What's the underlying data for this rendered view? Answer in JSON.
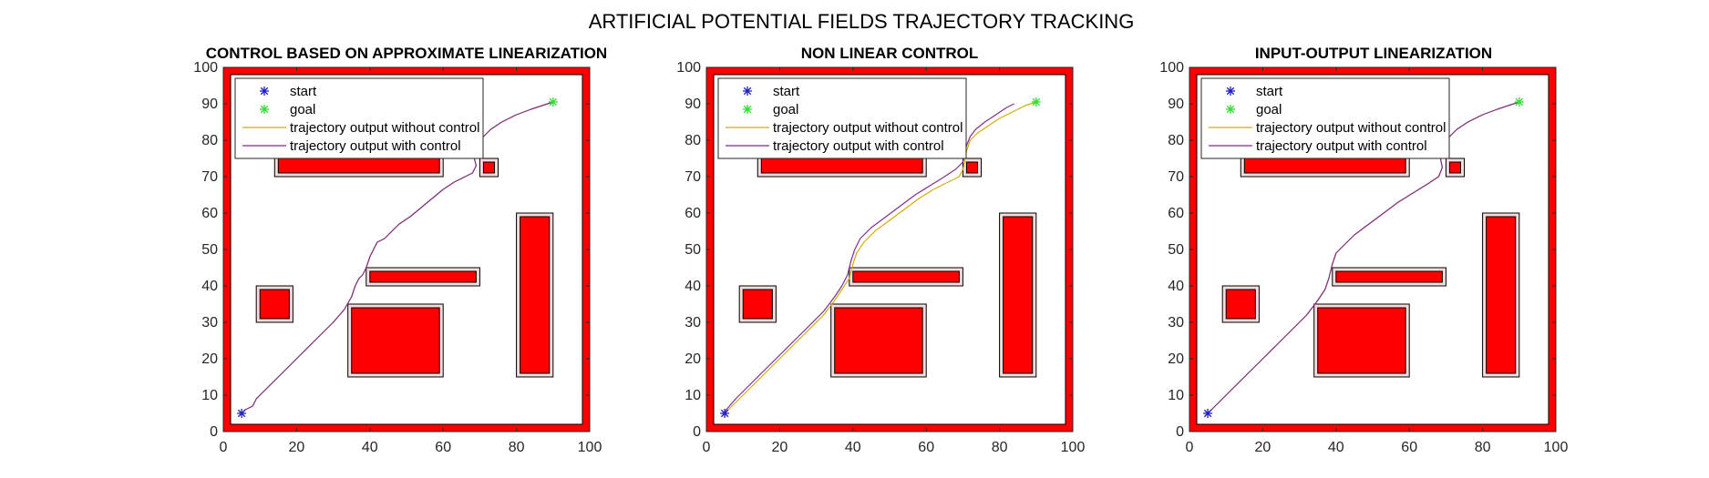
{
  "figure": {
    "title": "ARTIFICIAL POTENTIAL FIELDS TRAJECTORY TRACKING"
  },
  "colors": {
    "obstacle_fill": "#ff0000",
    "obstacle_edge": "#000000",
    "margin_fill": "#f2dcdc",
    "start_marker": "#1f1fbf",
    "goal_marker": "#33dd33",
    "trajectory_without_control": "#d4ac0d",
    "trajectory_with_control": "#7e2f8e"
  },
  "chart_data": [
    {
      "type": "line",
      "title": "CONTROL BASED ON APPROXIMATE LINEARIZATION",
      "xlabel": "",
      "ylabel": "",
      "xlim": [
        0,
        100
      ],
      "ylim": [
        0,
        100
      ],
      "xticks": [
        "0",
        "20",
        "40",
        "60",
        "80",
        "100"
      ],
      "yticks": [
        "0",
        "10",
        "20",
        "30",
        "40",
        "50",
        "60",
        "70",
        "80",
        "90",
        "100"
      ],
      "grid": false,
      "legend": {
        "placement": "top-left",
        "entries": [
          "start",
          "goal",
          "trajectory output without control",
          "trajectory output with control"
        ]
      },
      "start": [
        5,
        5
      ],
      "goal": [
        90,
        90.5
      ],
      "series": [
        {
          "name": "trajectory output without control",
          "color": "trajectory_without_control",
          "x": [
            5,
            6,
            8,
            9,
            11,
            14,
            18,
            22,
            26,
            30,
            33,
            35,
            36,
            37,
            38,
            39,
            40,
            41,
            42,
            43,
            44,
            46,
            48,
            51,
            54,
            57,
            60,
            63,
            66,
            68,
            69,
            68.5,
            68,
            69,
            71,
            73,
            76,
            80,
            84,
            87,
            90
          ],
          "y": [
            5,
            6,
            7,
            9,
            11,
            14,
            18,
            22,
            26,
            30,
            33.5,
            37,
            40,
            42,
            43,
            45,
            48,
            50,
            52,
            52.5,
            53,
            55,
            57,
            59,
            61.5,
            64,
            66.5,
            68.5,
            70,
            71,
            73,
            75,
            76.5,
            78.5,
            81,
            83,
            85,
            87,
            88.5,
            89.5,
            90.5
          ]
        },
        {
          "name": "trajectory output with control",
          "color": "trajectory_with_control",
          "x": [
            5,
            6,
            8,
            9,
            11,
            14,
            18,
            22,
            26,
            30,
            33,
            35,
            36,
            37,
            38,
            39,
            40,
            41,
            42,
            43,
            44,
            46,
            48,
            51,
            54,
            57,
            60,
            63,
            66,
            68,
            69,
            68.5,
            68,
            69,
            71,
            73,
            76,
            80,
            84,
            87,
            90
          ],
          "y": [
            5,
            6,
            7,
            9,
            11,
            14,
            18,
            22,
            26,
            30,
            33.5,
            37,
            40,
            42,
            43,
            45,
            48,
            50,
            52,
            52.5,
            53,
            55,
            57,
            59,
            61.5,
            64,
            66.5,
            68.5,
            70,
            71,
            73,
            75,
            76.5,
            78.5,
            81,
            83,
            85,
            87,
            88.5,
            89.5,
            90.5
          ]
        }
      ]
    },
    {
      "type": "line",
      "title": "NON LINEAR CONTROL",
      "xlabel": "",
      "ylabel": "",
      "xlim": [
        0,
        100
      ],
      "ylim": [
        0,
        100
      ],
      "xticks": [
        "0",
        "20",
        "40",
        "60",
        "80",
        "100"
      ],
      "yticks": [
        "0",
        "10",
        "20",
        "30",
        "40",
        "50",
        "60",
        "70",
        "80",
        "90",
        "100"
      ],
      "grid": false,
      "legend": {
        "placement": "top-left",
        "entries": [
          "start",
          "goal",
          "trajectory output without control",
          "trajectory output with control"
        ]
      },
      "start": [
        5,
        5
      ],
      "goal": [
        90,
        90.5
      ],
      "series": [
        {
          "name": "trajectory output without control",
          "color": "trajectory_without_control",
          "x": [
            5,
            8,
            12,
            16,
            20,
            24,
            28,
            32,
            35,
            37,
            39,
            40,
            41,
            43,
            46,
            50,
            54,
            58,
            62,
            66,
            69,
            70,
            70.5,
            71,
            72,
            74,
            77,
            80,
            84,
            87,
            90
          ],
          "y": [
            5,
            8,
            12,
            16,
            20,
            24,
            28,
            32,
            36,
            39,
            42,
            46,
            49,
            52,
            55,
            58,
            61,
            64,
            66.5,
            68.5,
            70,
            72,
            74,
            77,
            80,
            82,
            84,
            86,
            88,
            89.5,
            90.5
          ]
        },
        {
          "name": "trajectory output with control",
          "color": "trajectory_with_control",
          "x": [
            5,
            8,
            12,
            16,
            20,
            24,
            28,
            32,
            35,
            37,
            38.5,
            39.5,
            40.5,
            42,
            45,
            49,
            53,
            57,
            61,
            65,
            68,
            70,
            70.5,
            71,
            72,
            73.5,
            76,
            79,
            82,
            84
          ],
          "y": [
            5.5,
            9,
            13,
            17,
            21,
            25,
            29,
            33,
            37,
            40,
            43,
            47,
            50,
            53,
            56,
            59,
            62,
            65,
            67.5,
            70,
            72,
            74,
            76,
            78.5,
            81,
            83,
            85,
            87,
            89,
            90
          ]
        }
      ]
    },
    {
      "type": "line",
      "title": "INPUT-OUTPUT LINEARIZATION",
      "xlabel": "",
      "ylabel": "",
      "xlim": [
        0,
        100
      ],
      "ylim": [
        0,
        100
      ],
      "xticks": [
        "0",
        "20",
        "40",
        "60",
        "80",
        "100"
      ],
      "yticks": [
        "0",
        "10",
        "20",
        "30",
        "40",
        "50",
        "60",
        "70",
        "80",
        "90",
        "100"
      ],
      "grid": false,
      "legend": {
        "placement": "top-left",
        "entries": [
          "start",
          "goal",
          "trajectory output without control",
          "trajectory output with control"
        ]
      },
      "start": [
        5,
        5
      ],
      "goal": [
        90,
        90.5
      ],
      "series": [
        {
          "name": "trajectory output without control",
          "color": "trajectory_without_control",
          "x": [
            5,
            8,
            12,
            16,
            20,
            24,
            28,
            32,
            35,
            37,
            38,
            39,
            40,
            42,
            45,
            49,
            53,
            57,
            61,
            65,
            68,
            69,
            68.5,
            68,
            69,
            71,
            73,
            76,
            80,
            84,
            87,
            90
          ],
          "y": [
            5,
            8,
            12,
            16,
            20,
            24,
            28,
            32,
            36,
            39,
            42,
            46,
            49,
            51,
            54,
            57,
            60,
            63,
            65.5,
            68,
            70,
            72.5,
            75,
            76.5,
            78.5,
            81,
            83,
            85,
            87,
            88.5,
            89.5,
            90.5
          ]
        },
        {
          "name": "trajectory output with control",
          "color": "trajectory_with_control",
          "x": [
            5,
            8,
            12,
            16,
            20,
            24,
            28,
            32,
            35,
            37,
            38,
            39,
            40,
            42,
            45,
            49,
            53,
            57,
            61,
            65,
            68,
            69,
            68.5,
            68,
            69,
            71,
            73,
            76,
            80,
            84,
            87,
            90
          ],
          "y": [
            5,
            8,
            12,
            16,
            20,
            24,
            28,
            32,
            36,
            39,
            42,
            46,
            49,
            51,
            54,
            57,
            60,
            63,
            65.5,
            68,
            70,
            72.5,
            75,
            76.5,
            78.5,
            81,
            83,
            85,
            87,
            88.5,
            89.5,
            90.5
          ]
        }
      ]
    }
  ],
  "environment": {
    "boundary_rects": [
      [
        0,
        0,
        100,
        2
      ],
      [
        0,
        98,
        100,
        100
      ],
      [
        0,
        0,
        2,
        100
      ],
      [
        98,
        0,
        100,
        100
      ]
    ],
    "obstacles": [
      {
        "outer": [
          14,
          70,
          60,
          80
        ],
        "inner": [
          15,
          71,
          59,
          79
        ]
      },
      {
        "outer": [
          70,
          70,
          75,
          75
        ],
        "inner": [
          71,
          71,
          74,
          74
        ]
      },
      {
        "outer": [
          80,
          15,
          90,
          60
        ],
        "inner": [
          81,
          16,
          89,
          59
        ]
      },
      {
        "outer": [
          39,
          40,
          70,
          45
        ],
        "inner": [
          40,
          41,
          69,
          44
        ]
      },
      {
        "outer": [
          9,
          30,
          19,
          40
        ],
        "inner": [
          10,
          31,
          18,
          39
        ]
      },
      {
        "outer": [
          34,
          15,
          60,
          35
        ],
        "inner": [
          35,
          16,
          59,
          34
        ]
      }
    ]
  }
}
